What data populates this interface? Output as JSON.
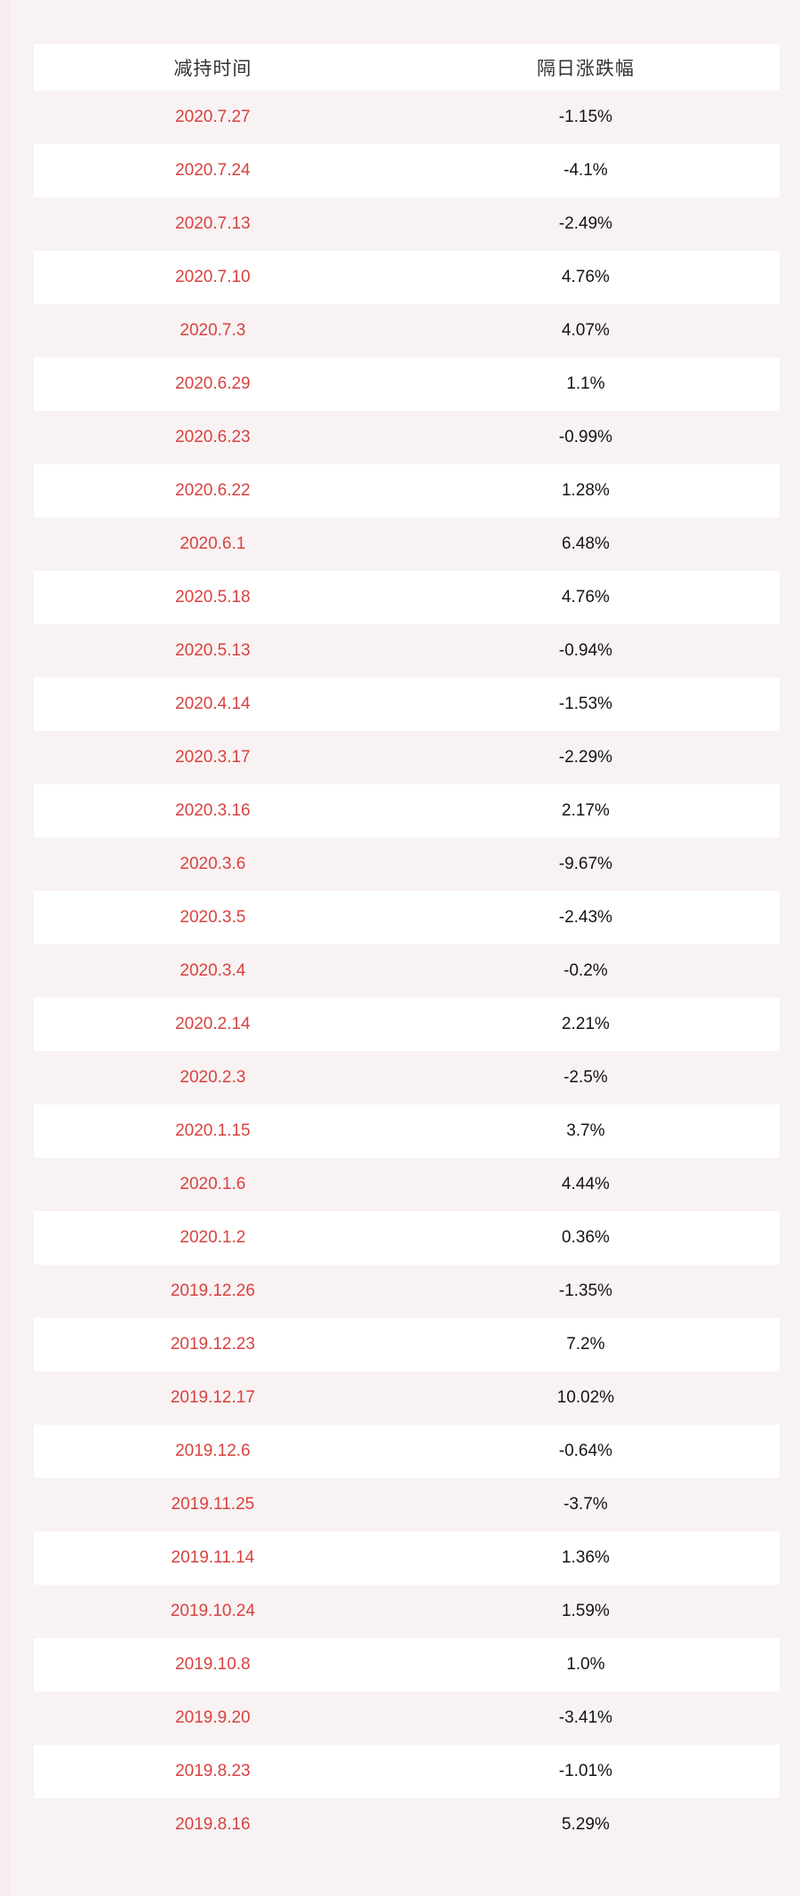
{
  "page": {
    "background_color": "#f8f2f3",
    "left_strip_color": "#f6edee",
    "row_white_color": "#ffffff",
    "date_text_color": "#d8423f",
    "change_text_color": "#141414",
    "header_text_color": "#333333"
  },
  "chart_data": {
    "type": "table",
    "columns": [
      "减持时间",
      "隔日涨跌幅"
    ],
    "rows": [
      [
        "2020.7.27",
        "-1.15%"
      ],
      [
        "2020.7.24",
        "-4.1%"
      ],
      [
        "2020.7.13",
        "-2.49%"
      ],
      [
        "2020.7.10",
        "4.76%"
      ],
      [
        "2020.7.3",
        "4.07%"
      ],
      [
        "2020.6.29",
        "1.1%"
      ],
      [
        "2020.6.23",
        "-0.99%"
      ],
      [
        "2020.6.22",
        "1.28%"
      ],
      [
        "2020.6.1",
        "6.48%"
      ],
      [
        "2020.5.18",
        "4.76%"
      ],
      [
        "2020.5.13",
        "-0.94%"
      ],
      [
        "2020.4.14",
        "-1.53%"
      ],
      [
        "2020.3.17",
        "-2.29%"
      ],
      [
        "2020.3.16",
        "2.17%"
      ],
      [
        "2020.3.6",
        "-9.67%"
      ],
      [
        "2020.3.5",
        "-2.43%"
      ],
      [
        "2020.3.4",
        "-0.2%"
      ],
      [
        "2020.2.14",
        "2.21%"
      ],
      [
        "2020.2.3",
        "-2.5%"
      ],
      [
        "2020.1.15",
        "3.7%"
      ],
      [
        "2020.1.6",
        "4.44%"
      ],
      [
        "2020.1.2",
        "0.36%"
      ],
      [
        "2019.12.26",
        "-1.35%"
      ],
      [
        "2019.12.23",
        "7.2%"
      ],
      [
        "2019.12.17",
        "10.02%"
      ],
      [
        "2019.12.6",
        "-0.64%"
      ],
      [
        "2019.11.25",
        "-3.7%"
      ],
      [
        "2019.11.14",
        "1.36%"
      ],
      [
        "2019.10.24",
        "1.59%"
      ],
      [
        "2019.10.8",
        "1.0%"
      ],
      [
        "2019.9.20",
        "-3.41%"
      ],
      [
        "2019.8.23",
        "-1.01%"
      ],
      [
        "2019.8.16",
        "5.29%"
      ]
    ]
  }
}
